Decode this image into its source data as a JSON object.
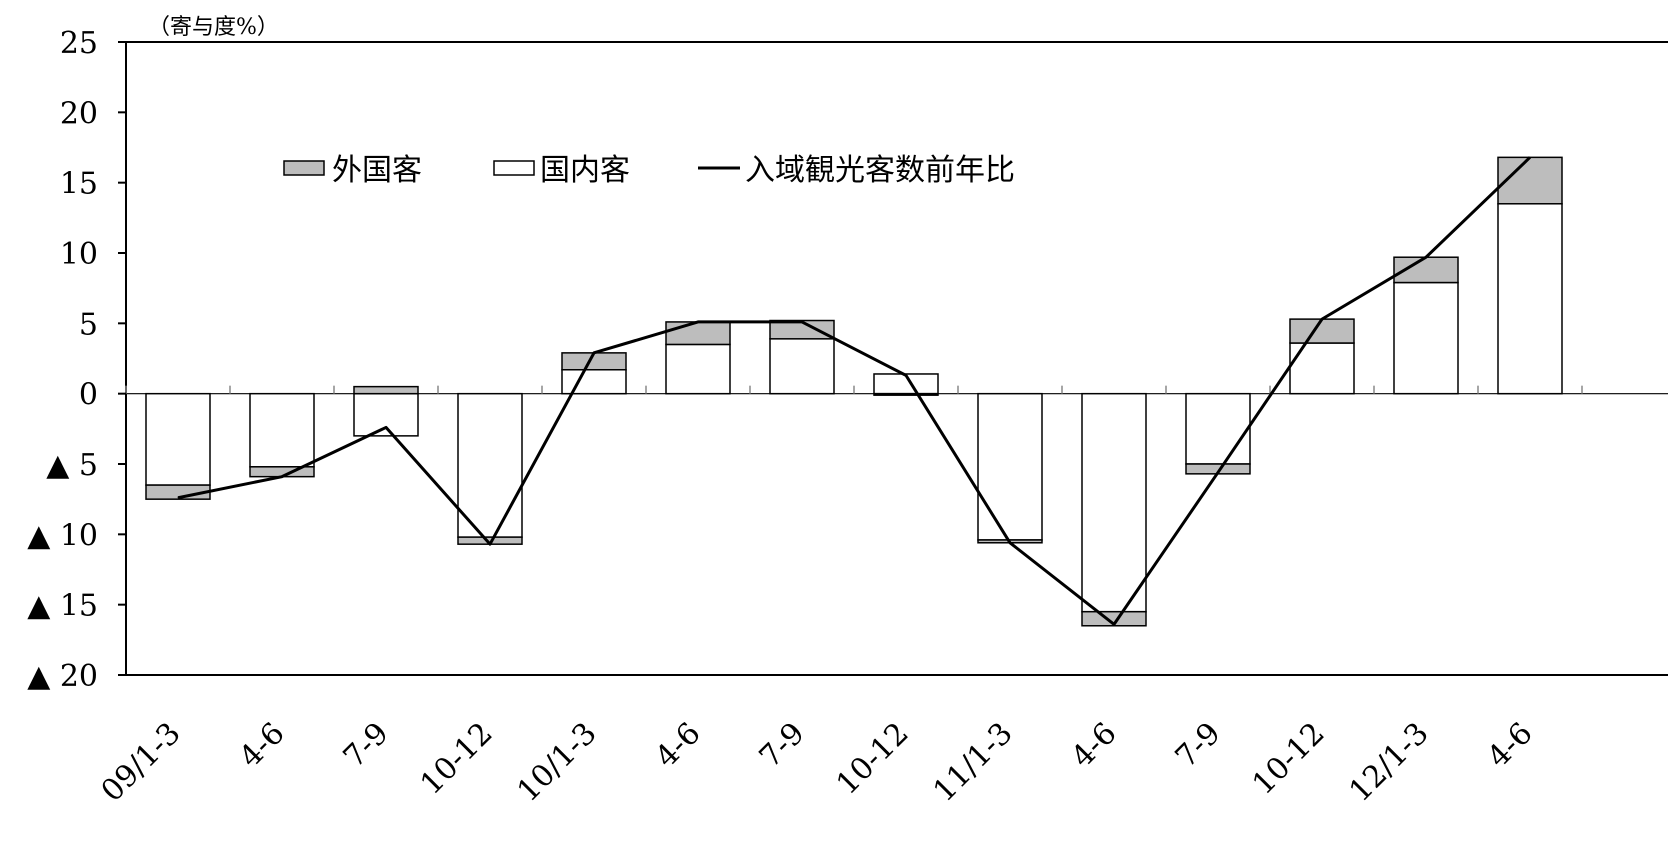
{
  "chart_data": {
    "type": "bar",
    "stacked": true,
    "unit_label": "（寄与度%）",
    "title": "",
    "xlabel": "",
    "ylabel": "",
    "ylim": [
      -20,
      25
    ],
    "y_ticks": [
      {
        "value": 25,
        "label": "25"
      },
      {
        "value": 20,
        "label": "20"
      },
      {
        "value": 15,
        "label": "15"
      },
      {
        "value": 10,
        "label": "10"
      },
      {
        "value": 5,
        "label": "5"
      },
      {
        "value": 0,
        "label": "0"
      },
      {
        "value": -5,
        "label": "▲ 5"
      },
      {
        "value": -10,
        "label": "▲ 10"
      },
      {
        "value": -15,
        "label": "▲ 15"
      },
      {
        "value": -20,
        "label": "▲ 20"
      }
    ],
    "categories": [
      "09/1-3",
      "4-6",
      "7-9",
      "10-12",
      "10/1-3",
      "4-6",
      "7-9",
      "10-12",
      "11/1-3",
      "4-6",
      "7-9",
      "10-12",
      "12/1-3",
      "4-6"
    ],
    "legend_position": "top-left",
    "series": [
      {
        "name": "外国客",
        "kind": "bar",
        "color": "#bdbdbd",
        "values": [
          -1.0,
          -0.7,
          0.5,
          -0.5,
          1.2,
          1.6,
          1.3,
          -0.1,
          -0.2,
          -1.0,
          -0.7,
          1.7,
          1.8,
          3.3
        ]
      },
      {
        "name": "国内客",
        "kind": "bar",
        "color": "#ffffff",
        "values": [
          -6.5,
          -5.2,
          -3.0,
          -10.2,
          1.7,
          3.5,
          3.9,
          1.4,
          -10.4,
          -15.5,
          -5.0,
          3.6,
          7.9,
          13.5
        ]
      },
      {
        "name": "入域観光客数前年比",
        "kind": "line",
        "color": "#000000",
        "values": [
          -7.4,
          -5.9,
          -2.4,
          -10.7,
          2.9,
          5.1,
          5.1,
          1.3,
          -10.6,
          -16.4,
          -5.6,
          5.3,
          9.7,
          16.8
        ]
      }
    ]
  }
}
